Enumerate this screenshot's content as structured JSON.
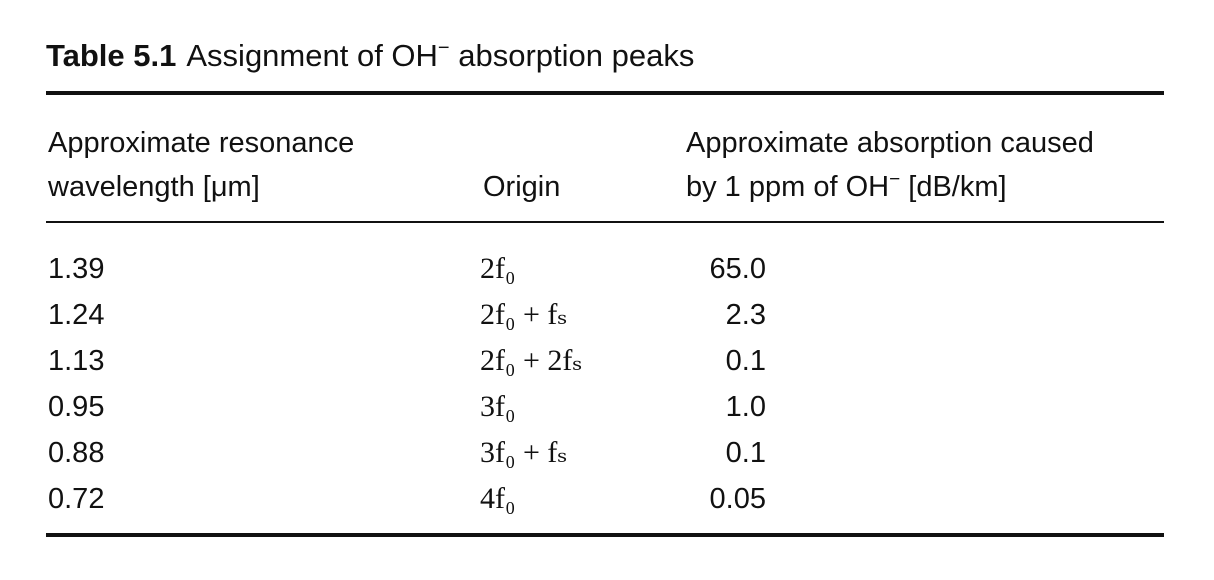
{
  "caption": {
    "number": "Table 5.1",
    "text": "Assignment of ",
    "species": "OH",
    "charge": "−",
    "text_after": " absorption peaks"
  },
  "columns": {
    "wavelength": {
      "line1": "Approximate resonance",
      "line2": "wavelength [μm]"
    },
    "origin": "Origin",
    "absorption": {
      "line1": "Approximate absorption caused",
      "line2_prefix": "by 1 ppm of OH",
      "line2_charge": "−",
      "line2_suffix": " [dB/km]"
    }
  },
  "rows": [
    {
      "wavelength": "1.39",
      "origin": "2f₀",
      "absorption": "65.0"
    },
    {
      "wavelength": "1.24",
      "origin": "2f₀ + fₛ",
      "absorption": "2.3"
    },
    {
      "wavelength": "1.13",
      "origin": "2f₀ + 2fₛ",
      "absorption": "0.1"
    },
    {
      "wavelength": "0.95",
      "origin": "3f₀",
      "absorption": "1.0"
    },
    {
      "wavelength": "0.88",
      "origin": "3f₀ + fₛ",
      "absorption": "0.1"
    },
    {
      "wavelength": "0.72",
      "origin": "4f₀",
      "absorption": "0.05"
    }
  ]
}
